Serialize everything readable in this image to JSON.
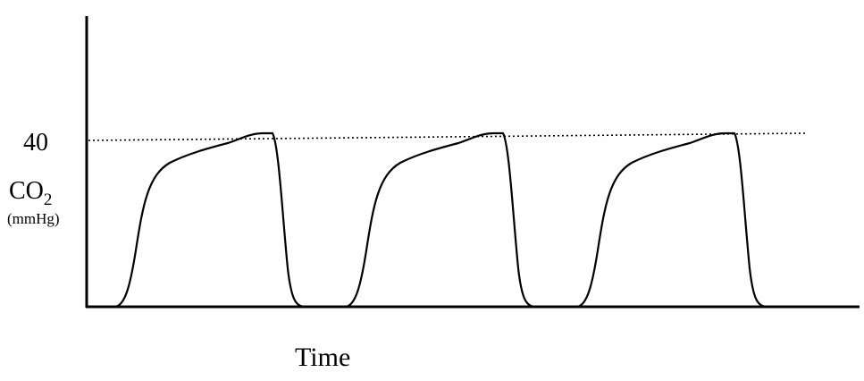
{
  "y_axis": {
    "tick": "40",
    "label": "CO",
    "label_subscript": "2",
    "unit": "(mmHg)"
  },
  "x_axis": {
    "label": "Time"
  }
}
